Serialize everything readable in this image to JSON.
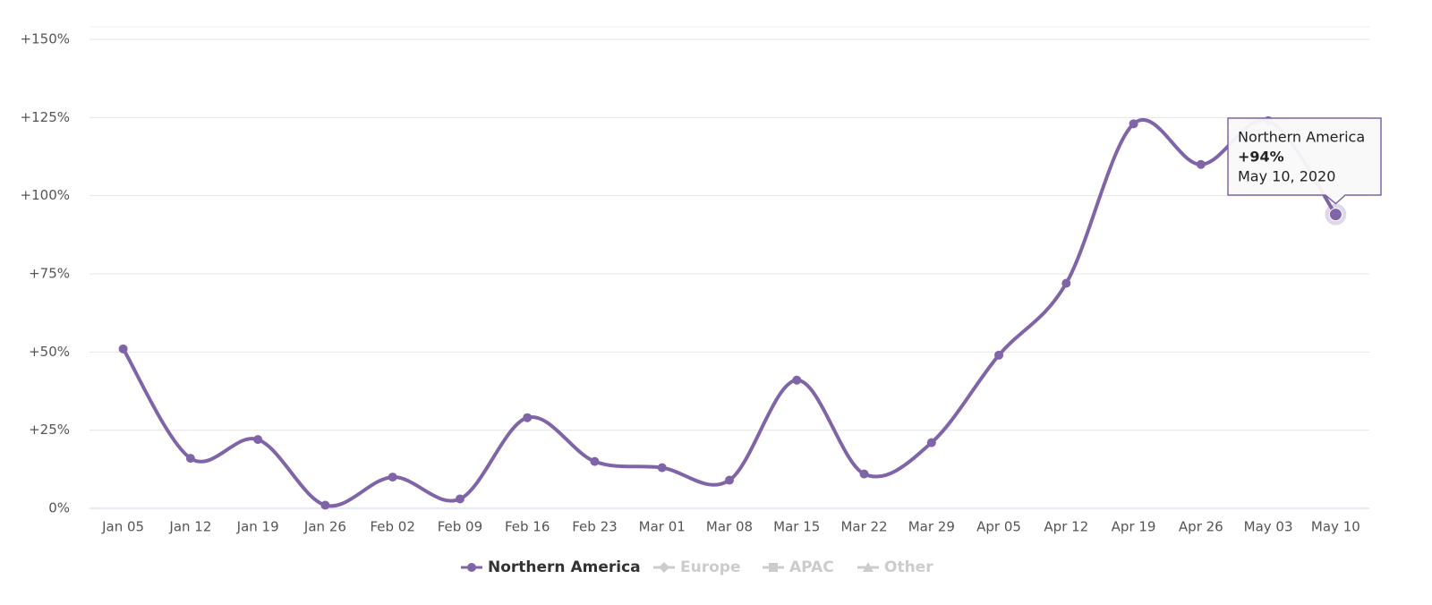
{
  "chart_data": {
    "type": "line",
    "categories": [
      "Jan 05",
      "Jan 12",
      "Jan 19",
      "Jan 26",
      "Feb 02",
      "Feb 09",
      "Feb 16",
      "Feb 23",
      "Mar 01",
      "Mar 08",
      "Mar 15",
      "Mar 22",
      "Mar 29",
      "Apr 05",
      "Apr 12",
      "Apr 19",
      "Apr 26",
      "May 03",
      "May 10"
    ],
    "series": [
      {
        "name": "Northern America",
        "color": "#8064a8",
        "marker": "circle",
        "visible": true,
        "values": [
          51,
          16,
          22,
          1,
          10,
          3,
          29,
          15,
          13,
          9,
          41,
          11,
          21,
          49,
          72,
          123,
          110,
          124,
          94
        ]
      },
      {
        "name": "Europe",
        "color": "#cccccc",
        "marker": "diamond",
        "visible": false
      },
      {
        "name": "APAC",
        "color": "#cccccc",
        "marker": "square",
        "visible": false
      },
      {
        "name": "Other",
        "color": "#cccccc",
        "marker": "triangle",
        "visible": false
      }
    ],
    "ylim": [
      0,
      150
    ],
    "yticks": [
      {
        "value": 0,
        "label": "0%"
      },
      {
        "value": 25,
        "label": "+25%"
      },
      {
        "value": 50,
        "label": "+50%"
      },
      {
        "value": 75,
        "label": "+75%"
      },
      {
        "value": 100,
        "label": "+100%"
      },
      {
        "value": 125,
        "label": "+125%"
      },
      {
        "value": 150,
        "label": "+150%"
      }
    ],
    "grid": true,
    "legend": "bottom",
    "tooltip": {
      "index": 18,
      "label": "+94%",
      "date": "May 10, 2020"
    }
  }
}
